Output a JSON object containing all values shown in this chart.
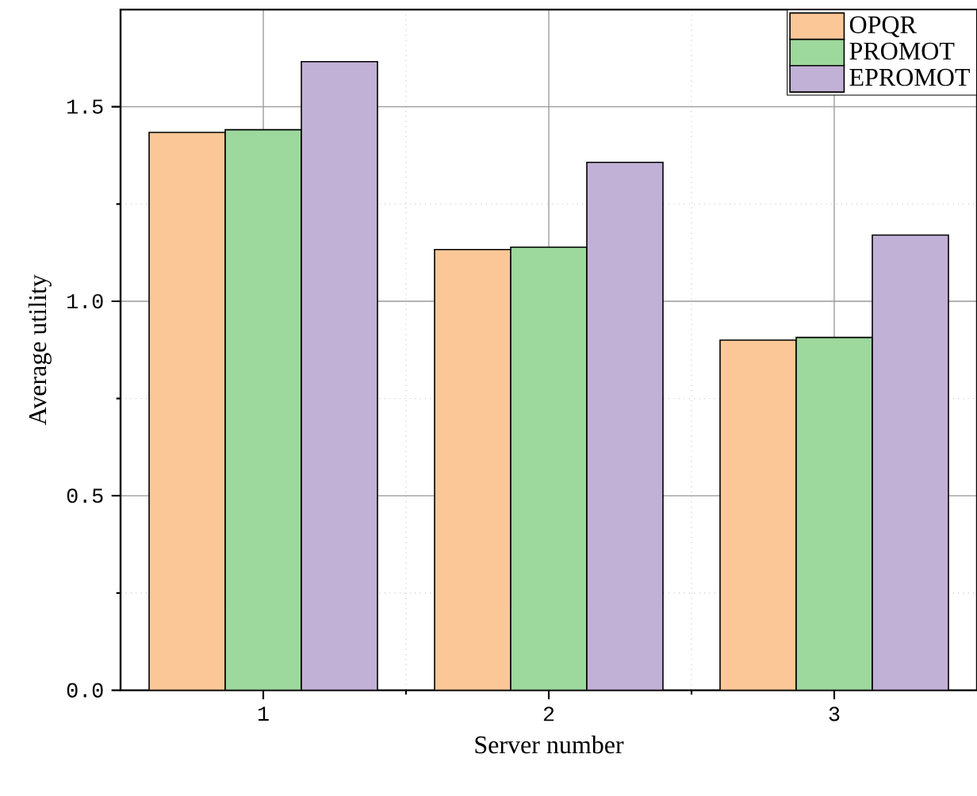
{
  "chart_data": {
    "type": "bar",
    "xlabel": "Server number",
    "ylabel": "Average utility",
    "categories": [
      "1",
      "2",
      "3"
    ],
    "series": [
      {
        "name": "OPQR",
        "color": "#fbc797",
        "values": [
          1.434,
          1.133,
          0.9
        ]
      },
      {
        "name": "PROMOT",
        "color": "#9dd89c",
        "values": [
          1.441,
          1.139,
          0.907
        ]
      },
      {
        "name": "EPROMOT",
        "color": "#c2b1d6",
        "values": [
          1.616,
          1.357,
          1.17
        ]
      }
    ],
    "ylim": [
      0,
      1.75
    ],
    "yticks": [
      {
        "value": 0,
        "label": "0.0"
      },
      0.5,
      {
        "value": 1,
        "label": "1.0"
      },
      1.5
    ],
    "grid": true,
    "legend": "top right"
  }
}
